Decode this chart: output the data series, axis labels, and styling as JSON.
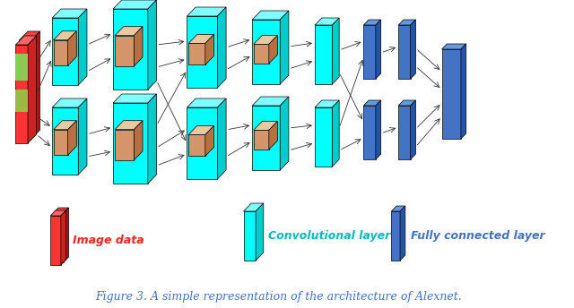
{
  "title": "Figure 3. A simple representation of the architecture of Alexnet.",
  "title_color": "#4472C4",
  "title_fontsize": 9,
  "bg_color": "#ffffff",
  "cyan_face": "#00FFFF",
  "cyan_top": "#80FFFF",
  "cyan_side": "#00CCCC",
  "red_face": "#FF3333",
  "red_dark": "#CC0000",
  "red_side": "#991111",
  "orange_face": "#D4956A",
  "orange_top": "#E8C9A0",
  "orange_side": "#B87040",
  "blue_face": "#4472C4",
  "blue_top": "#6699DD",
  "blue_side": "#2255AA",
  "arrow_color": "#333333",
  "legend_red_label": "Image data",
  "legend_cyan_label": "Convolutional layer",
  "legend_blue_label": "Fully connected layer"
}
